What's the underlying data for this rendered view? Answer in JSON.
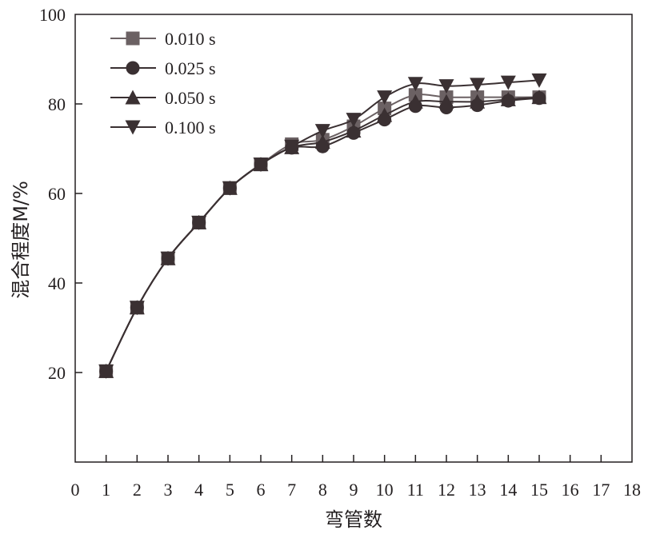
{
  "chart_data": {
    "type": "line",
    "title": "",
    "xlabel": "弯管数",
    "ylabel": "混合程度M/%",
    "xlim": [
      0,
      18
    ],
    "ylim": [
      0,
      100
    ],
    "x_ticks": [
      0,
      1,
      2,
      3,
      4,
      5,
      6,
      7,
      8,
      9,
      10,
      11,
      12,
      13,
      14,
      15,
      16,
      17,
      18
    ],
    "y_ticks": [
      20,
      40,
      60,
      80,
      100
    ],
    "grid": false,
    "legend_position": "top-left",
    "series": [
      {
        "name": "0.010 s",
        "marker": "square",
        "color": "#6b6163",
        "x": [
          1,
          2,
          3,
          4,
          5,
          6,
          7,
          8,
          9,
          10,
          11,
          12,
          13,
          14,
          15
        ],
        "y": [
          20.3,
          34.5,
          45.5,
          53.5,
          61.2,
          66.5,
          71.0,
          72.0,
          75.0,
          79.0,
          82.0,
          81.5,
          81.5,
          81.5,
          81.5
        ]
      },
      {
        "name": "0.025 s",
        "marker": "circle",
        "color": "#3a3032",
        "x": [
          1,
          2,
          3,
          4,
          5,
          6,
          7,
          8,
          9,
          10,
          11,
          12,
          13,
          14,
          15
        ],
        "y": [
          20.3,
          34.5,
          45.5,
          53.5,
          61.2,
          66.5,
          70.2,
          70.5,
          73.5,
          76.5,
          79.5,
          79.2,
          79.7,
          80.7,
          81.3
        ]
      },
      {
        "name": "0.050 s",
        "marker": "triangle-up",
        "color": "#3a3032",
        "x": [
          1,
          2,
          3,
          4,
          5,
          6,
          7,
          8,
          9,
          10,
          11,
          12,
          13,
          14,
          15
        ],
        "y": [
          20.3,
          34.5,
          45.5,
          53.5,
          61.2,
          66.5,
          70.3,
          71.5,
          74.0,
          77.5,
          80.5,
          80.5,
          80.5,
          81.0,
          81.5
        ]
      },
      {
        "name": "0.100 s",
        "marker": "triangle-down",
        "color": "#3a3032",
        "x": [
          1,
          2,
          3,
          4,
          5,
          6,
          7,
          8,
          9,
          10,
          11,
          12,
          13,
          14,
          15
        ],
        "y": [
          20.3,
          34.5,
          45.5,
          53.5,
          61.2,
          66.5,
          70.5,
          74.0,
          76.5,
          81.5,
          84.5,
          84.0,
          84.3,
          84.8,
          85.3
        ]
      }
    ]
  }
}
